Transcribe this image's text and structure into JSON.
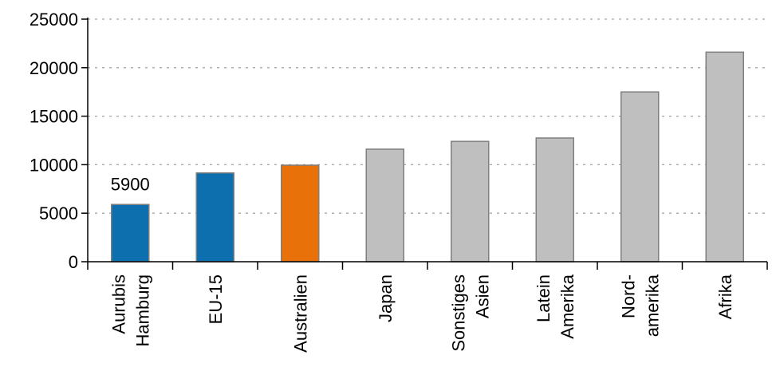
{
  "chart_data": {
    "type": "bar",
    "title": "",
    "xlabel": "",
    "ylabel": "",
    "ylim": [
      0,
      25000
    ],
    "yticks": [
      0,
      5000,
      10000,
      15000,
      20000,
      25000
    ],
    "ytick_labels": [
      "0",
      "5000",
      "10000",
      "15000",
      "20000",
      "25000"
    ],
    "grid": "horizontal dashed",
    "categories": [
      [
        "Aurubis",
        "Hamburg"
      ],
      [
        "EU-15"
      ],
      [
        "Australien"
      ],
      [
        "Japan"
      ],
      [
        "Sonstiges",
        "Asien"
      ],
      [
        "Latein",
        "Amerika"
      ],
      [
        "Nord-",
        "amerika"
      ],
      [
        "Afrika"
      ]
    ],
    "values": [
      5900,
      9150,
      9950,
      11600,
      12400,
      12750,
      17500,
      21600
    ],
    "bar_colors": [
      "#0E6FAE",
      "#0E6FAE",
      "#E8710A",
      "#BFBFBF",
      "#BFBFBF",
      "#BFBFBF",
      "#BFBFBF",
      "#BFBFBF"
    ],
    "data_labels": [
      {
        "index": 0,
        "text": "5900"
      }
    ]
  }
}
